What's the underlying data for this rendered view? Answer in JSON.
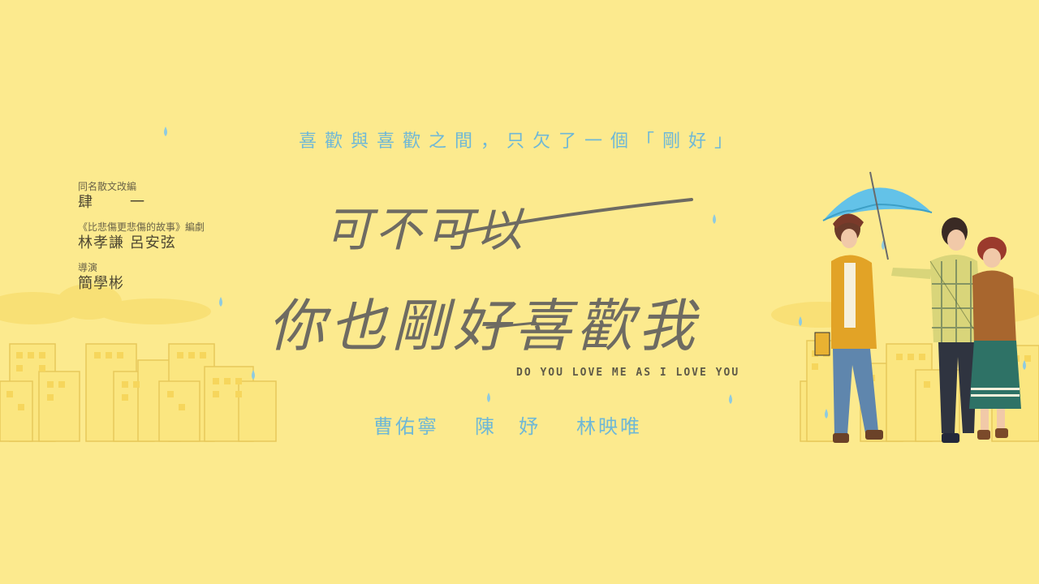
{
  "tagline": "喜歡與喜歡之間，只欠了一個「剛好」",
  "credits": [
    {
      "role": "同名散文改編",
      "name": "肆　一"
    },
    {
      "role": "《比悲傷更悲傷的故事》編劇",
      "name": "林孝謙 呂安弦"
    },
    {
      "role": "導演",
      "name": "簡學彬"
    }
  ],
  "title": {
    "line1": "可不可以",
    "line2": "你也剛好喜歡我",
    "english": "DO YOU LOVE ME AS I LOVE YOU"
  },
  "cast": [
    "曹佑寧",
    "陳　妤",
    "林映唯"
  ],
  "colors": {
    "background": "#fcea8e",
    "accent_blue": "#6fb8d6",
    "building_line": "#e7c85a",
    "title_gray": "#6e6b62"
  }
}
